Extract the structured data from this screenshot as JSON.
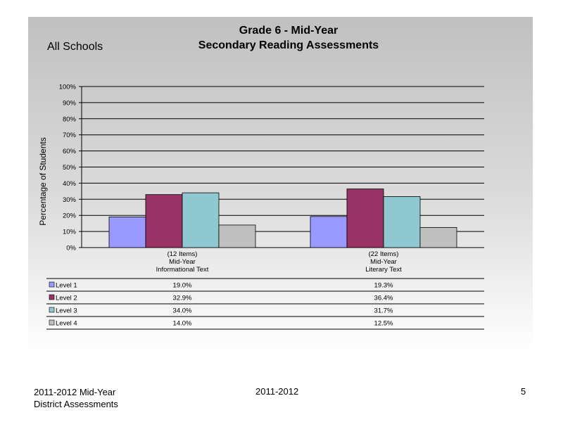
{
  "header": {
    "scope": "All Schools",
    "title_line1": "Grade 6 - Mid-Year",
    "title_line2": "Secondary Reading Assessments"
  },
  "chart_data": {
    "type": "bar",
    "ylabel": "Percentage of Students",
    "ylim": [
      0,
      100
    ],
    "yticks": [
      "0%",
      "10%",
      "20%",
      "30%",
      "40%",
      "50%",
      "60%",
      "70%",
      "80%",
      "90%",
      "100%"
    ],
    "grid": true,
    "categories": [
      [
        "(12 Items)",
        "Mid-Year",
        "Informational Text"
      ],
      [
        "(22 Items)",
        "Mid-Year",
        "Literary Text"
      ]
    ],
    "series": [
      {
        "name": "Level 1",
        "color": "#9999ff",
        "values": [
          19.0,
          19.3
        ],
        "labels": [
          "19.0%",
          "19.3%"
        ]
      },
      {
        "name": "Level 2",
        "color": "#993366",
        "values": [
          32.9,
          36.4
        ],
        "labels": [
          "32.9%",
          "36.4%"
        ]
      },
      {
        "name": "Level 3",
        "color": "#8fc8d0",
        "values": [
          34.0,
          31.7
        ],
        "labels": [
          "34.0%",
          "31.7%"
        ]
      },
      {
        "name": "Level 4",
        "color": "#c0c0c0",
        "values": [
          14.0,
          12.5
        ],
        "labels": [
          "14.0%",
          "12.5%"
        ]
      }
    ]
  },
  "footer": {
    "left_line1": "2011-2012  Mid-Year",
    "left_line2": "District Assessments",
    "center": "2011-2012",
    "page": "5"
  }
}
